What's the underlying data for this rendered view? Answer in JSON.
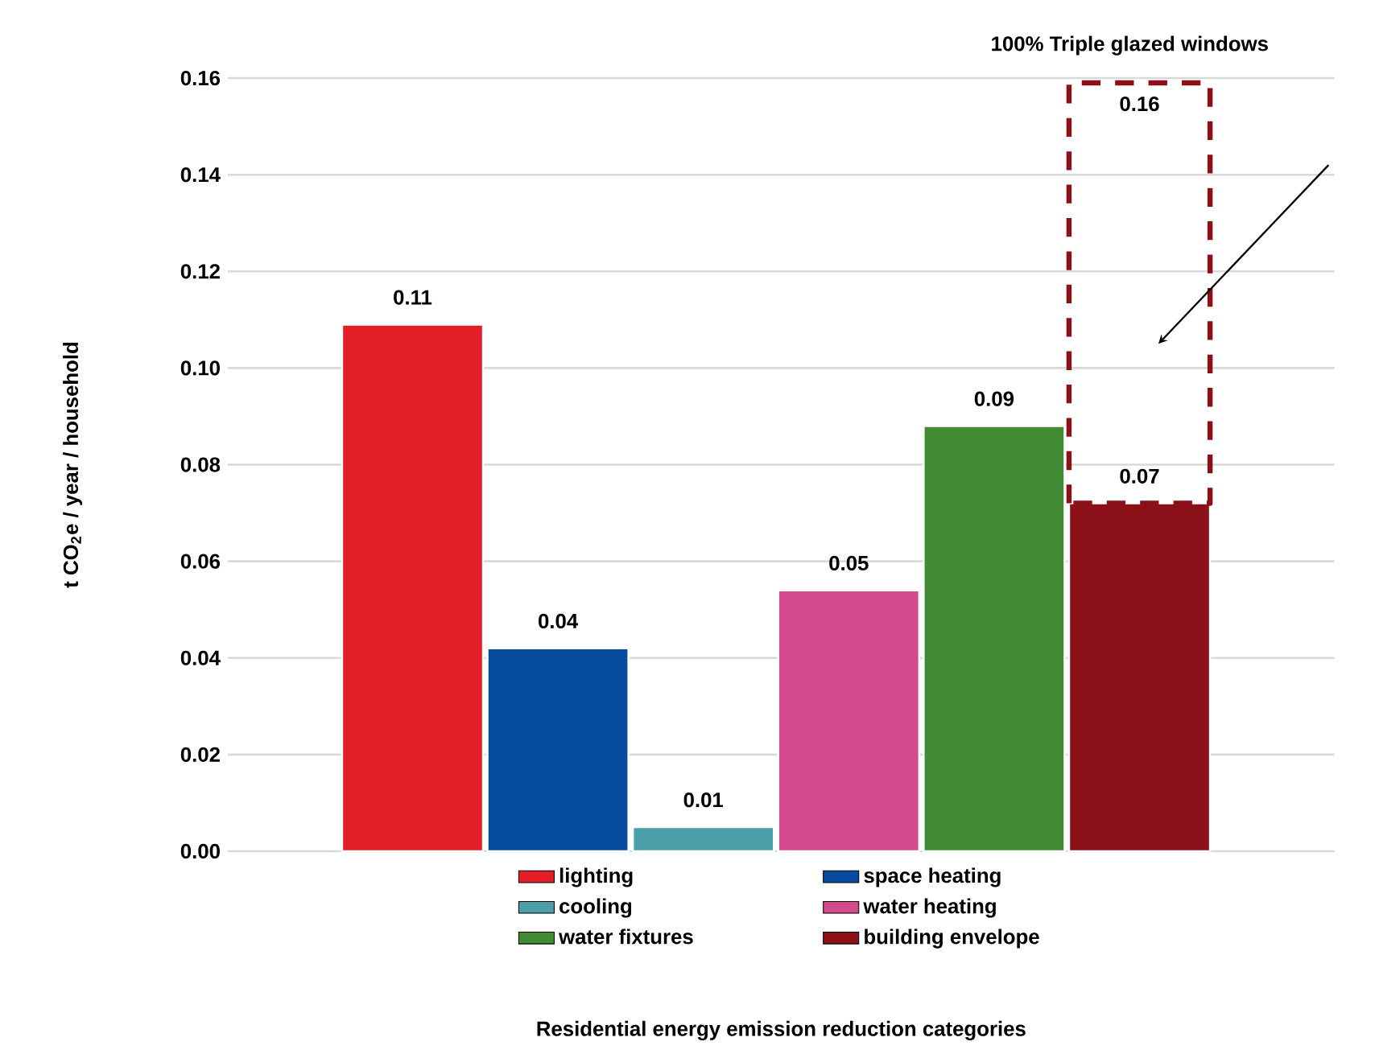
{
  "chart_data": {
    "type": "bar",
    "ylabel": "t CO$_{2}$e / year / household",
    "stacked": true,
    "categories": [
      null,
      null,
      null,
      null,
      null,
      null
    ],
    "series": [
      {
        "name": "lighting",
        "color": "#e31e28",
        "values": [
          0.109,
          null,
          null,
          null,
          null,
          null
        ],
        "value_labels": [
          "0.11",
          null,
          null,
          null,
          null,
          null
        ]
      },
      {
        "name": "space heating",
        "color": "#064b9e",
        "values": [
          null,
          0.042,
          null,
          null,
          null,
          null
        ],
        "value_labels": [
          null,
          "0.04",
          null,
          null,
          null,
          null
        ]
      },
      {
        "name": "cooling",
        "color": "#4a9fa8",
        "values": [
          null,
          null,
          0.005,
          null,
          null,
          null
        ],
        "value_labels": [
          null,
          null,
          "0.01",
          null,
          null,
          null
        ]
      },
      {
        "name": "water heating",
        "color": "#d44a8c",
        "values": [
          null,
          null,
          null,
          0.054,
          null,
          null
        ],
        "value_labels": [
          null,
          null,
          null,
          "0.05",
          null,
          null
        ]
      },
      {
        "name": "water fixtures",
        "color": "#418b34",
        "values": [
          null,
          null,
          null,
          null,
          0.088,
          null
        ],
        "value_labels": [
          null,
          null,
          null,
          null,
          "0.09",
          null
        ]
      },
      {
        "name": "building envelope",
        "color": "#8b1018",
        "values": [
          null,
          null,
          null,
          null,
          null,
          0.072
        ],
        "value_labels": [
          null,
          null,
          null,
          null,
          null,
          "0.07"
        ]
      },
      {
        "color": "#8b1018",
        "line_style": "dashed",
        "values": [
          null,
          null,
          null,
          null,
          null,
          0.087
        ]
      }
    ],
    "totals": [
      null,
      null,
      null,
      null,
      null,
      "0.16"
    ],
    "annotations": [
      "100% Triple glazed windows",
      "Residential energy emission reduction categories"
    ],
    "ylim": [
      0,
      0.16
    ],
    "yticks": [
      {
        "value": 0,
        "label": "0.00"
      },
      {
        "value": 0.02,
        "label": "0.02"
      },
      {
        "value": 0.04,
        "label": "0.04"
      },
      {
        "value": 0.06,
        "label": "0.06"
      },
      {
        "value": 0.08,
        "label": "0.08"
      },
      {
        "value": 0.1,
        "label": "0.10"
      },
      {
        "value": 0.12,
        "label": "0.12"
      },
      {
        "value": 0.14,
        "label": "0.14"
      },
      {
        "value": 0.16,
        "label": "0.16"
      }
    ],
    "grid": "y",
    "legend": "bottom"
  }
}
